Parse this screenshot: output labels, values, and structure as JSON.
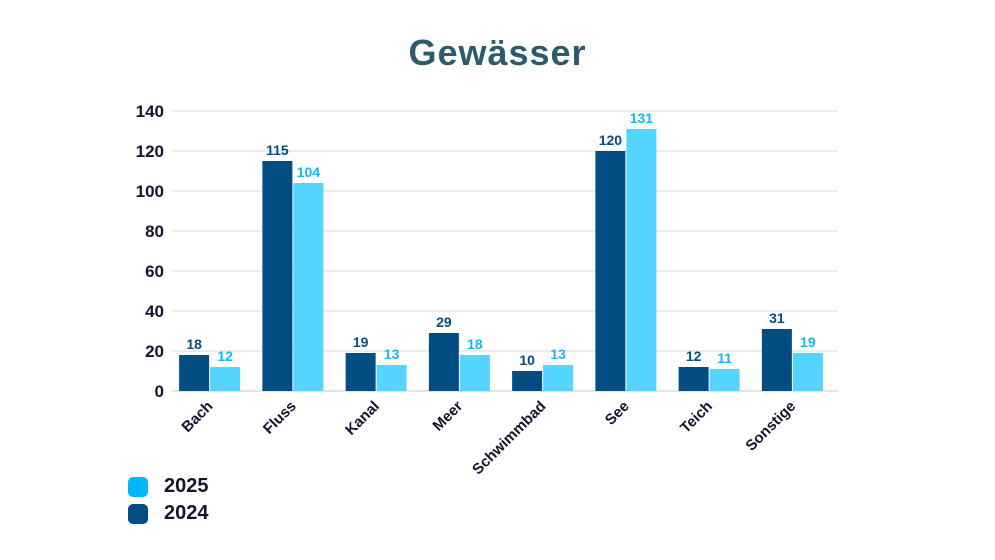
{
  "chart_data": {
    "type": "bar",
    "title": "Gewässer",
    "xlabel": "",
    "ylabel": "",
    "ylim": [
      0,
      140
    ],
    "yticks": [
      0,
      20,
      40,
      60,
      80,
      100,
      120,
      140
    ],
    "grid": true,
    "legend_placement": "bottom-left",
    "categories": [
      "Bach",
      "Fluss",
      "Kanal",
      "Meer",
      "Schwimmbad",
      "See",
      "Teich",
      "Sonstige"
    ],
    "series": [
      {
        "name": "2024",
        "color": "#034d82",
        "label_color": "#034d82",
        "values": [
          18,
          115,
          19,
          29,
          10,
          120,
          12,
          31
        ]
      },
      {
        "name": "2025",
        "color": "#55d4ff",
        "label_color": "#12b8f0",
        "values": [
          12,
          104,
          13,
          18,
          13,
          131,
          11,
          19
        ]
      }
    ],
    "legend": [
      {
        "name": "2025",
        "color": "#00b8f5"
      },
      {
        "name": "2024",
        "color": "#034d82"
      }
    ]
  }
}
